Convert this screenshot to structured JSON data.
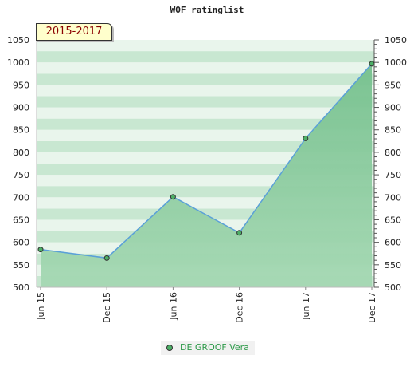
{
  "chart_data": {
    "type": "area",
    "title": "WOF ratinglist",
    "annotation": "2015-2017",
    "categories": [
      "Jun 15",
      "Dec 15",
      "Jun 16",
      "Dec 16",
      "Jun 17",
      "Dec 17"
    ],
    "series": [
      {
        "name": "DE GROOF Vera",
        "values": [
          584,
          565,
          701,
          621,
          831,
          997
        ]
      }
    ],
    "ylim": [
      500,
      1050
    ],
    "yticks": [
      500,
      550,
      600,
      650,
      700,
      750,
      800,
      850,
      900,
      950,
      1000,
      1050
    ],
    "y_axis_both_sides": true,
    "legend_position": "bottom",
    "grid": "alternating horizontal bands",
    "colors": {
      "line": "#5aa0d8",
      "area": "#7cc494",
      "marker": "#4caf66",
      "title": "#8b0000"
    }
  }
}
